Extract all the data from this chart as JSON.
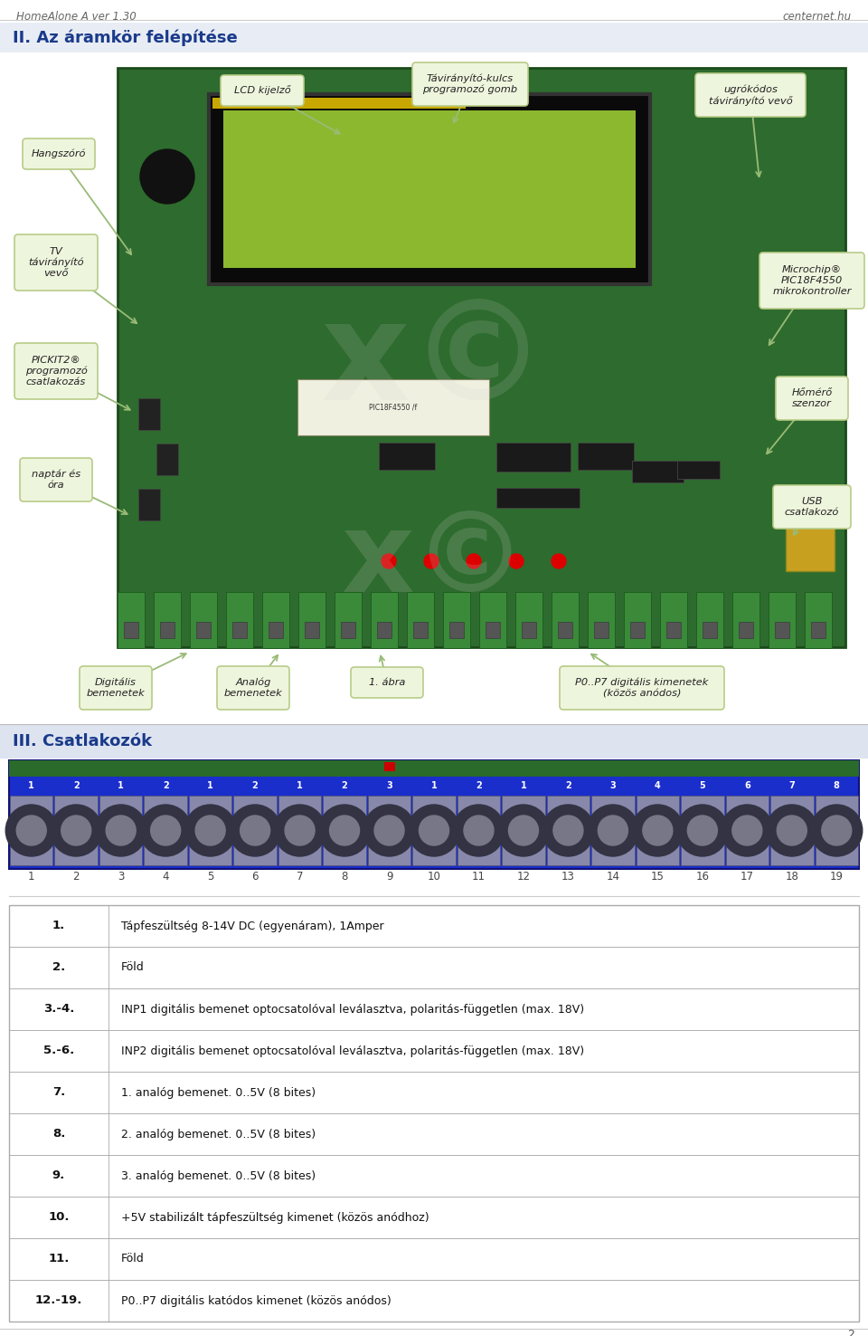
{
  "page_header_left": "HomeAlone A ver 1.30",
  "page_header_right": "centernet.hu",
  "page_number": "2",
  "section2_title": "II. Az áramkör felépítése",
  "section3_title": "III. Csatlakozók",
  "connector_numbers_top": [
    "1",
    "2",
    "1",
    "2",
    "1",
    "2",
    "1",
    "2",
    "3",
    "1",
    "2",
    "1",
    "2",
    "3",
    "4",
    "5",
    "6",
    "7",
    "8"
  ],
  "connector_numbers_bottom": [
    "1",
    "2",
    "3",
    "4",
    "5",
    "6",
    "7",
    "8",
    "9",
    "10",
    "11",
    "12",
    "13",
    "14",
    "15",
    "16",
    "17",
    "18",
    "19"
  ],
  "table_rows": [
    {
      "label": "1.",
      "text": "Tápfeszültség 8-14V DC (egyenáram), 1Amper"
    },
    {
      "label": "2.",
      "text": "Föld"
    },
    {
      "label": "3.-4.",
      "text": "INP1 digitális bemenet optocsatolóval leválasztva, polaritás-független (max. 18V)"
    },
    {
      "label": "5.-6.",
      "text": "INP2 digitális bemenet optocsatolóval leválasztva, polaritás-független (max. 18V)"
    },
    {
      "label": "7.",
      "text": "1. analóg bemenet. 0..5V (8 bites)"
    },
    {
      "label": "8.",
      "text": "2. analóg bemenet. 0..5V (8 bites)"
    },
    {
      "label": "9.",
      "text": "3. analóg bemenet. 0..5V (8 bites)"
    },
    {
      "label": "10.",
      "text": "+5V stabilizált tápfeszültség kimenet (közös anódhoz)"
    },
    {
      "label": "11.",
      "text": "Föld"
    },
    {
      "label": "12.-19.",
      "text": "P0..P7 digitális katódos kimenet (közös anódos)"
    }
  ],
  "bg_color": "#ffffff",
  "section_title_color": "#1a3a8a",
  "label_bg": "#eef5dd",
  "label_border": "#b8cc88",
  "label_text_color": "#222222",
  "pcb_color": "#2e6b2e",
  "pcb_border": "#1a4a1a",
  "lcd_bg": "#0a0a0a",
  "lcd_screen": "#8cb830",
  "connector_bg": "#1a2ecc",
  "connector_terminal_bg": "#6a6a7a",
  "connector_hole": "#333344",
  "table_border": "#aaaaaa",
  "row_bg_even": "#ffffff",
  "row_bg_odd": "#ffffff",
  "header_text": "#666666",
  "watermark_color": "#cccccc",
  "sec3_title_bar_color": "#dde4f0"
}
